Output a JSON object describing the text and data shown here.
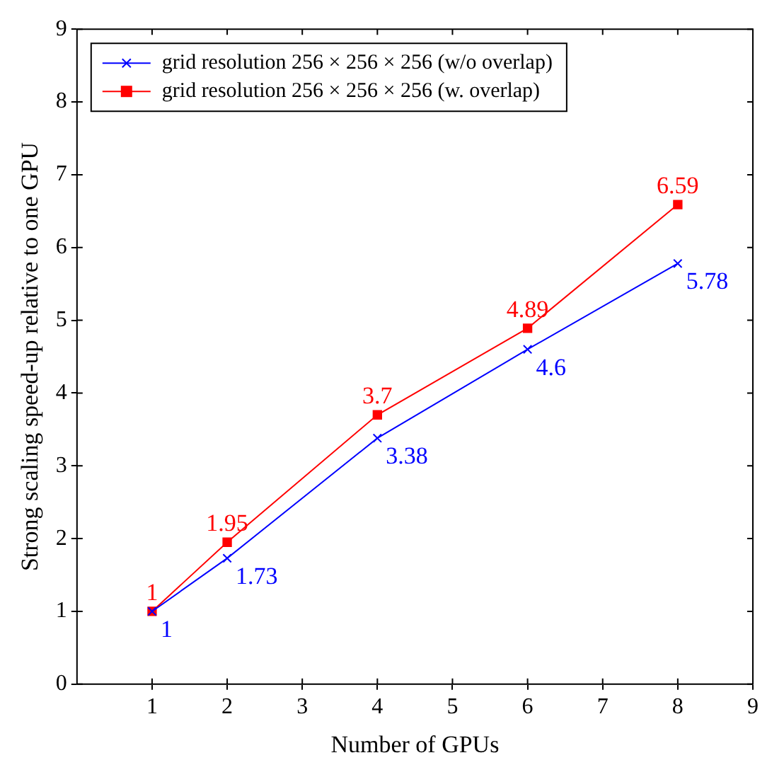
{
  "chart_data": {
    "type": "line",
    "xlabel": "Number of GPUs",
    "ylabel": "Strong scaling speed-up relative to one GPU",
    "x": [
      1,
      2,
      4,
      6,
      8
    ],
    "series": [
      {
        "name": "grid resolution 256 × 256 × 256 (w/o overlap)",
        "color": "#0000ff",
        "marker": "cross",
        "values": [
          1,
          1.73,
          3.38,
          4.6,
          5.78
        ]
      },
      {
        "name": "grid resolution 256 × 256 × 256 (w. overlap)",
        "color": "#ff0000",
        "marker": "square",
        "values": [
          1,
          1.95,
          3.7,
          4.89,
          6.59
        ]
      }
    ],
    "xlim": [
      0,
      9
    ],
    "xticks": [
      1,
      2,
      3,
      4,
      5,
      6,
      7,
      8,
      9
    ],
    "ylim": [
      0,
      9
    ],
    "yticks": [
      0,
      1,
      2,
      3,
      4,
      5,
      6,
      7,
      8,
      9
    ],
    "data_labels": true,
    "legend": "top left",
    "grid": false,
    "line_style": "solid"
  }
}
